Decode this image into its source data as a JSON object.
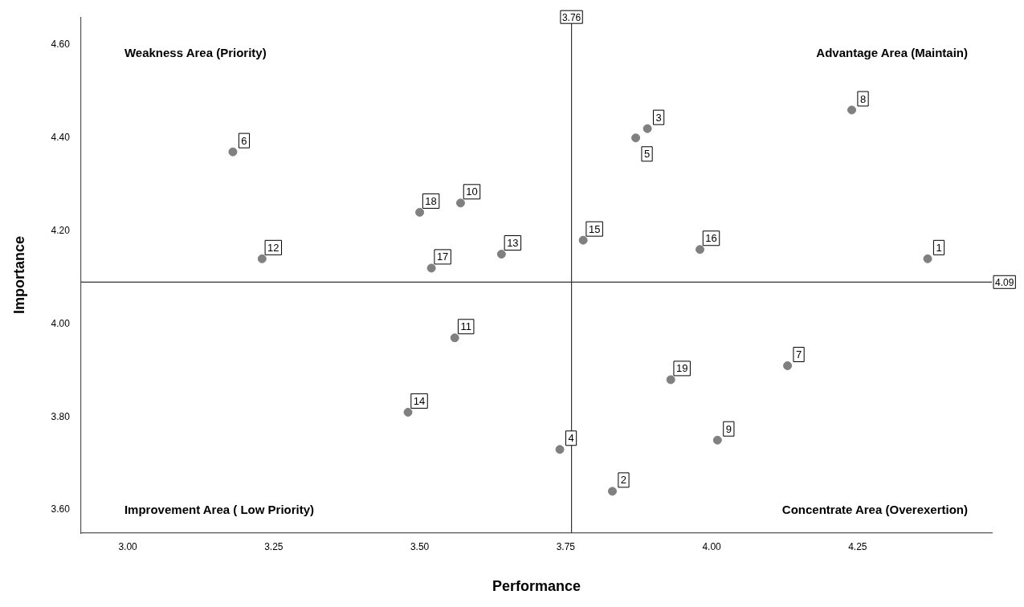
{
  "chart_data": {
    "type": "scatter",
    "xlabel": "Performance",
    "ylabel": "Importance",
    "x": [
      4.37,
      3.83,
      3.89,
      3.74,
      3.87,
      3.18,
      4.13,
      4.24,
      4.01,
      3.57,
      3.56,
      3.23,
      3.64,
      3.48,
      3.78,
      3.98,
      3.52,
      3.5,
      3.93
    ],
    "values": [
      4.14,
      3.64,
      4.42,
      3.73,
      4.4,
      4.37,
      3.91,
      4.46,
      3.75,
      4.26,
      3.97,
      4.14,
      4.15,
      3.81,
      4.18,
      4.16,
      4.12,
      4.24,
      3.88
    ],
    "color": "#808080",
    "marker": "circle",
    "grid": false,
    "legend": false,
    "xlim": [
      2.92,
      4.48
    ],
    "ylim": [
      3.55,
      4.66
    ],
    "xticks": [
      {
        "value": 3,
        "label": "3.00"
      },
      {
        "value": 3.25,
        "label": "3.25"
      },
      {
        "value": 3.5,
        "label": "3.50"
      },
      {
        "value": 3.75,
        "label": "3.75"
      },
      {
        "value": 4,
        "label": "4.00"
      },
      {
        "value": 4.25,
        "label": "4.25"
      }
    ],
    "yticks": [
      {
        "value": 3.6,
        "label": "3.60"
      },
      {
        "value": 3.8,
        "label": "3.80"
      },
      {
        "value": 4,
        "label": "4.00"
      },
      {
        "value": 4.2,
        "label": "4.20"
      },
      {
        "value": 4.4,
        "label": "4.40"
      },
      {
        "value": 4.6,
        "label": "4.60"
      }
    ],
    "ref_lines": [
      {
        "axis": "x",
        "value": 3.76,
        "label": "3.76"
      },
      {
        "axis": "y",
        "value": 4.09,
        "label": "4.09"
      }
    ],
    "annotations": [
      "Weakness Area (Priority)",
      "Advantage Area (Maintain)",
      "Improvement Area ( Low Priority)",
      "Concentrate Area (Overexertion)",
      {
        "text": "1",
        "x": 4.37,
        "y": 4.14
      },
      {
        "text": "2",
        "x": 3.83,
        "y": 3.64
      },
      {
        "text": "3",
        "x": 3.89,
        "y": 4.42
      },
      {
        "text": "4",
        "x": 3.74,
        "y": 3.73
      },
      {
        "text": "5",
        "x": 3.87,
        "y": 4.4
      },
      {
        "text": "6",
        "x": 3.18,
        "y": 4.37
      },
      {
        "text": "7",
        "x": 4.13,
        "y": 3.91
      },
      {
        "text": "8",
        "x": 4.24,
        "y": 4.46
      },
      {
        "text": "9",
        "x": 4.01,
        "y": 3.75
      },
      {
        "text": "10",
        "x": 3.57,
        "y": 4.26
      },
      {
        "text": "11",
        "x": 3.56,
        "y": 3.97
      },
      {
        "text": "12",
        "x": 3.23,
        "y": 4.14
      },
      {
        "text": "13",
        "x": 3.64,
        "y": 4.15
      },
      {
        "text": "14",
        "x": 3.48,
        "y": 3.81
      },
      {
        "text": "15",
        "x": 3.78,
        "y": 4.18
      },
      {
        "text": "16",
        "x": 3.98,
        "y": 4.16
      },
      {
        "text": "17",
        "x": 3.52,
        "y": 4.12
      },
      {
        "text": "18",
        "x": 3.5,
        "y": 4.24
      },
      {
        "text": "19",
        "x": 3.93,
        "y": 3.88
      }
    ]
  }
}
